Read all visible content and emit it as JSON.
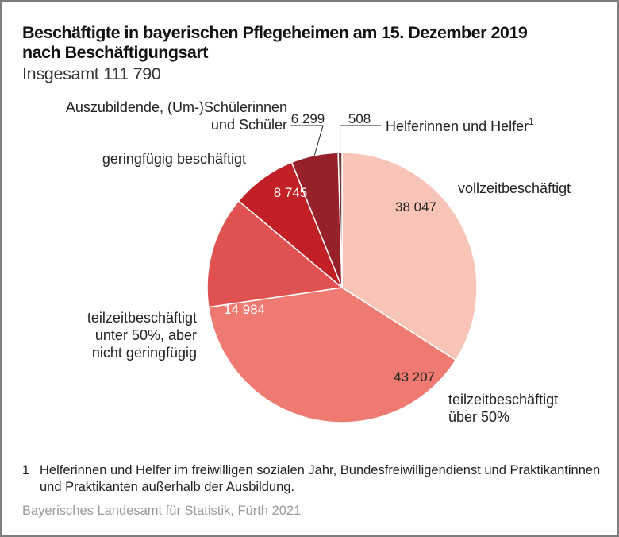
{
  "chart_data": {
    "type": "pie",
    "title": "Beschäftigte in bayerischen Pflegeheimen am 15. Dezember 2019",
    "title_line2": "nach Beschäftigungsart",
    "subtitle": "Insgesamt 111 790",
    "total": 111790,
    "start": "top, clockwise",
    "slices": [
      {
        "label": "vollzeitbeschäftigt",
        "label_lines": [
          "vollzeitbeschäftigt"
        ],
        "value": 38047,
        "value_text": "38 047",
        "color": "#f7c4b7",
        "value_color": "#222222"
      },
      {
        "label": "teilzeitbeschäftigt über 50%",
        "label_lines": [
          "teilzeitbeschäftigt",
          "über 50%"
        ],
        "value": 43207,
        "value_text": "43 207",
        "color": "#ee7a72",
        "value_color": "#222222"
      },
      {
        "label": "teilzeitbeschäftigt unter 50%, aber nicht geringfügig",
        "label_lines": [
          "teilzeitbeschäftigt",
          "unter 50%, aber",
          "nicht geringfügig"
        ],
        "value": 14984,
        "value_text": "14 984",
        "color": "#e05252",
        "value_color": "#ffffff"
      },
      {
        "label": "geringfügig beschäftigt",
        "label_lines": [
          "geringfügig beschäftigt"
        ],
        "value": 8745,
        "value_text": "8 745",
        "color": "#c02026",
        "value_color": "#ffffff"
      },
      {
        "label": "Auszubildende, (Um-)Schülerinnen und Schüler",
        "label_lines": [
          "Auszubildende, (Um-)Schülerinnen",
          "und Schüler"
        ],
        "value": 6299,
        "value_text": "6 299",
        "color": "#96212a",
        "value_color": "#222222"
      },
      {
        "label": "Helferinnen und Helfer",
        "label_lines": [
          "Helferinnen und Helfer"
        ],
        "footnote_mark": "1",
        "value": 508,
        "value_text": "508",
        "color": "#6e3a3a",
        "value_color": "#222222"
      }
    ]
  },
  "footnote": {
    "number": "1",
    "text": "Helferinnen und Helfer im freiwilligen sozialen Jahr, Bundesfreiwilligendienst und Praktikantinnen und Praktikanten außerhalb der Ausbildung."
  },
  "source": "Bayerisches Landesamt für Statistik, Fürth 2021"
}
